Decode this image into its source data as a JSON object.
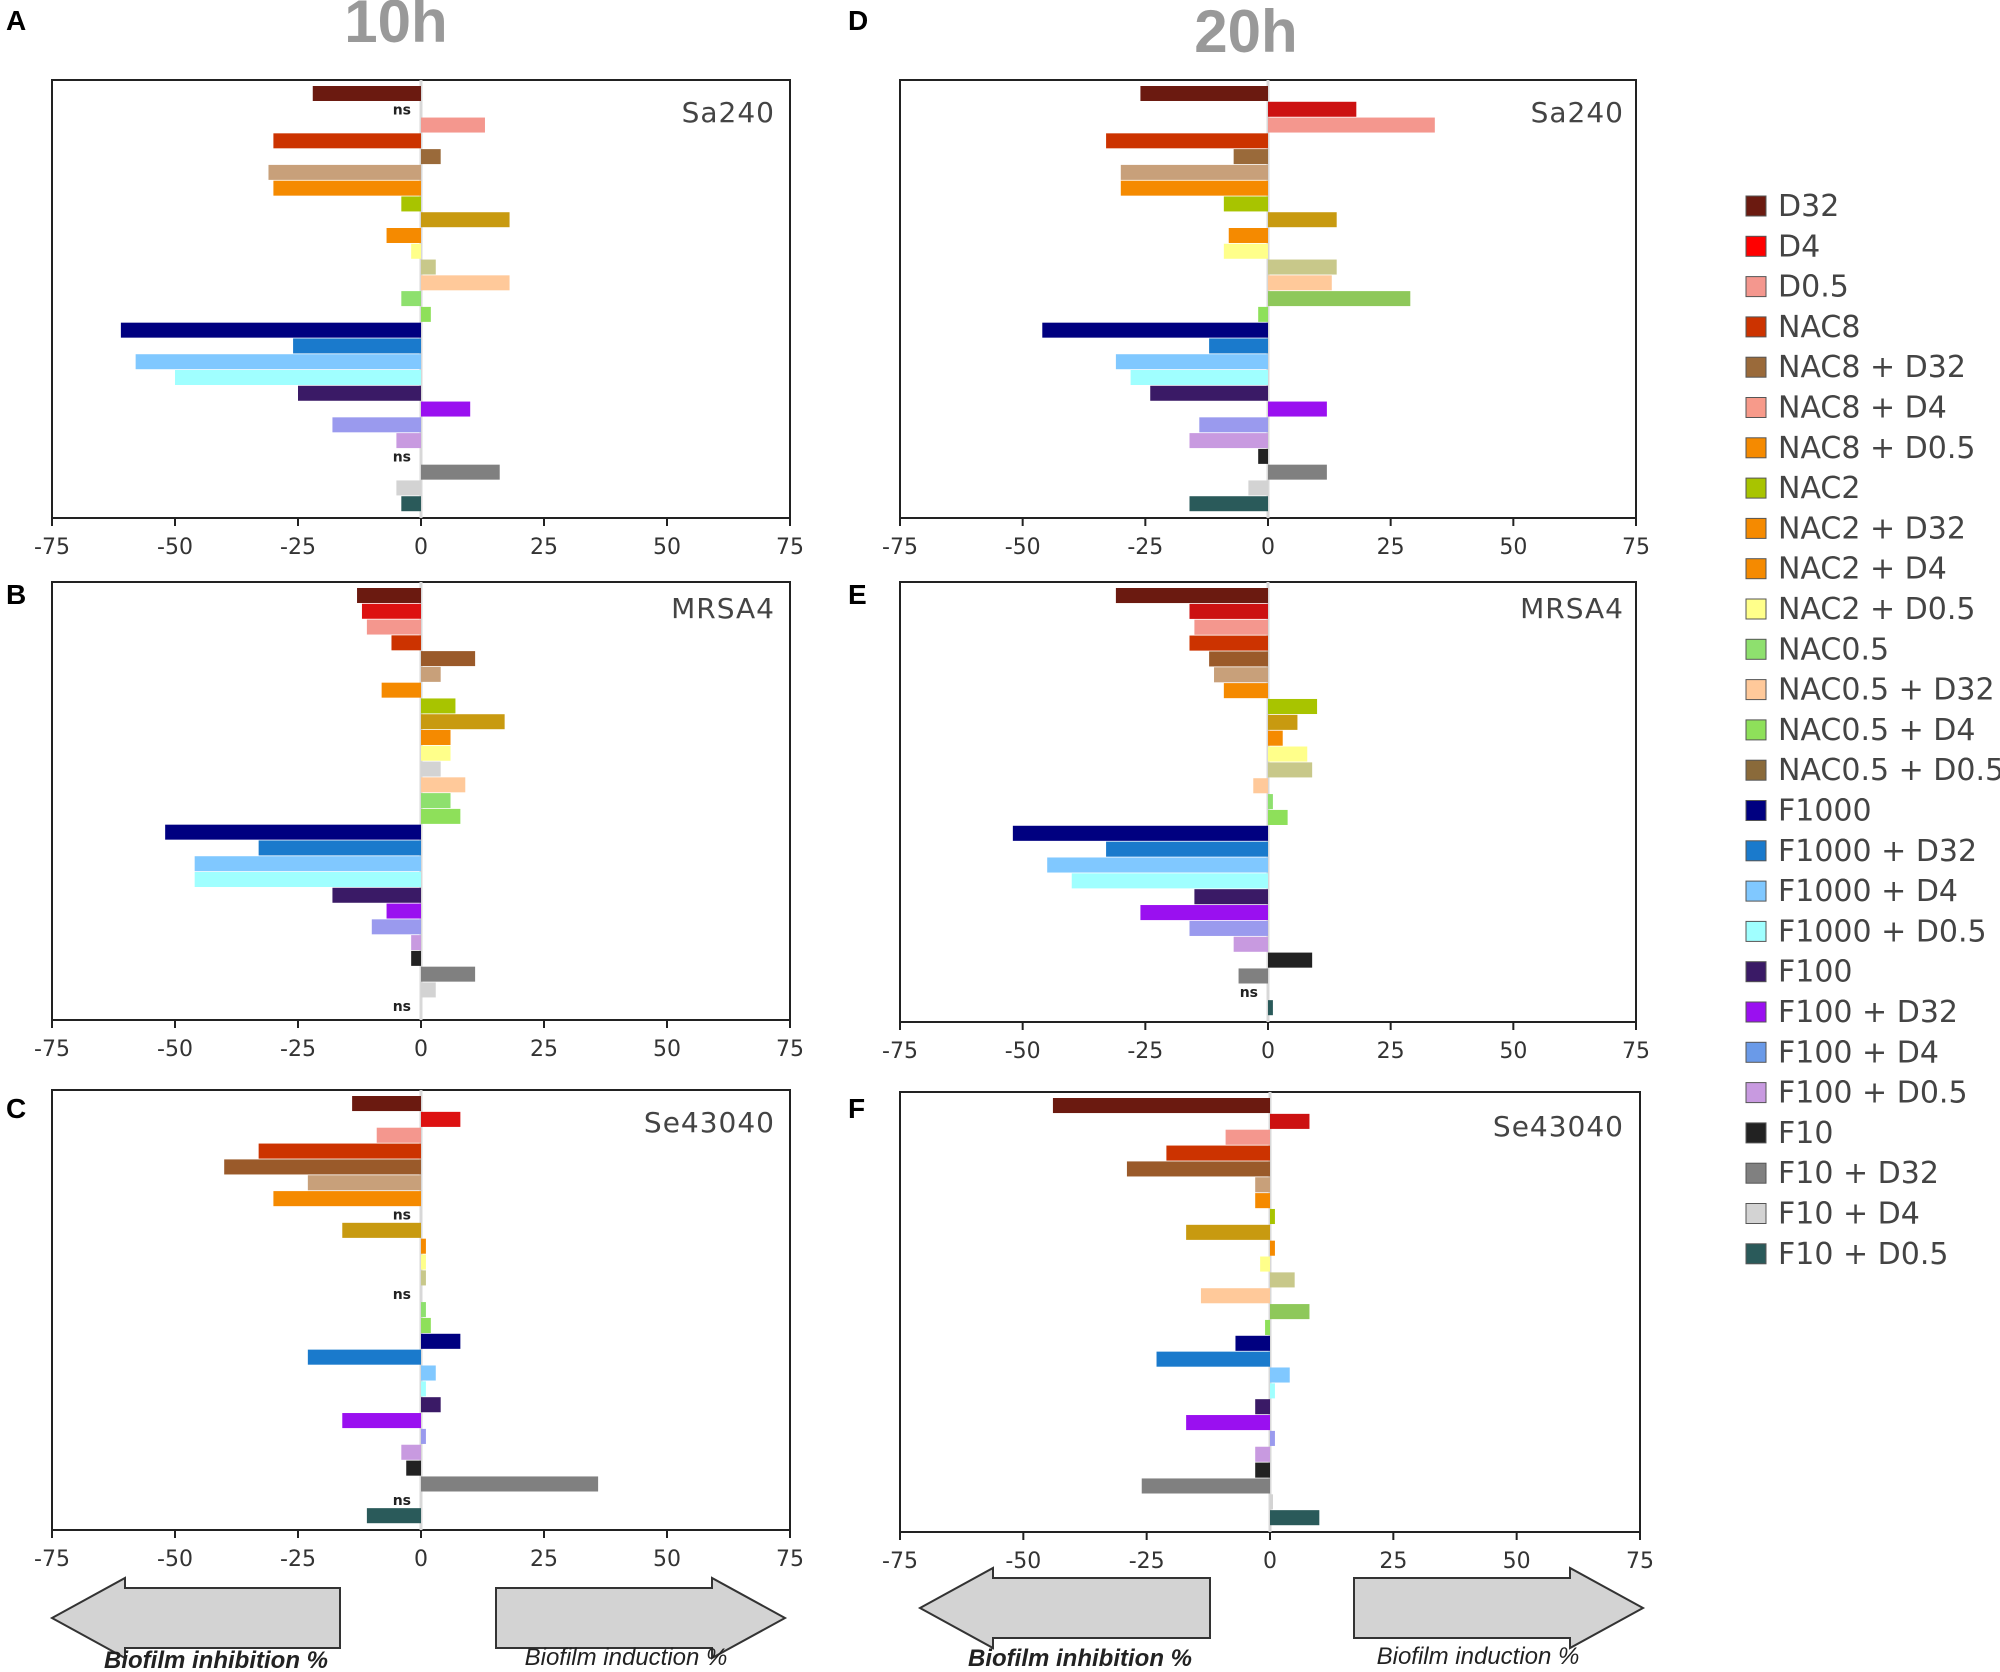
{
  "time_labels": {
    "left": "10h",
    "right": "20h"
  },
  "ns_label": "ns",
  "arrows": {
    "inhibition": "Biofilm inhibition %",
    "induction": "Biofilm induction %"
  },
  "series_names": [
    "D32",
    "D4",
    "D0.5",
    "NAC8",
    "NAC8 + D32",
    "NAC8 + D4",
    "NAC8 + D0.5",
    "NAC2",
    "NAC2 + D32",
    "NAC2 + D4",
    "NAC2 + D0.5",
    "NAC0.5",
    "NAC0.5 + D32",
    "NAC0.5 + D4",
    "NAC0.5 + D0.5",
    "F1000",
    "F1000 + D32",
    "F1000 + D4",
    "F1000 + D0.5",
    "F100",
    "F100 + D32",
    "F100 + D4",
    "F100 + D0.5",
    "F10",
    "F10 + D32",
    "F10 + D4",
    "F10 + D0.5"
  ],
  "legend_colors": [
    "#6b1a10",
    "#ff0000",
    "#f4978e",
    "#cc3300",
    "#9a6a3a",
    "#f79a8a",
    "#f58a00",
    "#a8c400",
    "#f58a00",
    "#f58a00",
    "#ffff8a",
    "#8ee06e",
    "#ffc99a",
    "#8ee05a",
    "#8a6a3a",
    "#000080",
    "#1a7acc",
    "#80c8ff",
    "#a0ffff",
    "#3a1a66",
    "#9a10f0",
    "#6a9ae8",
    "#c89ae0",
    "#222222",
    "#808080",
    "#d3d3d3",
    "#2a5a5a"
  ],
  "chart_data": [
    {
      "panel": "A",
      "type": "bar",
      "orientation": "horizontal",
      "strain": "Sa240",
      "time": "10h",
      "xlim": [
        -75,
        75
      ],
      "xticks": [
        -75,
        -50,
        -25,
        0,
        25,
        50,
        75
      ],
      "rows": [
        {
          "value": -22,
          "color": "#6b1a10"
        },
        {
          "value": 0,
          "ns": true
        },
        {
          "value": 13,
          "color": "#f4978e"
        },
        {
          "value": -30,
          "color": "#cc3300"
        },
        {
          "value": 4,
          "color": "#9a6a3a"
        },
        {
          "value": -31,
          "color": "#c8a07a"
        },
        {
          "value": -30,
          "color": "#f58a00"
        },
        {
          "value": -4,
          "color": "#a8c400"
        },
        {
          "value": 18,
          "color": "#c89a10"
        },
        {
          "value": -7,
          "color": "#f58a00"
        },
        {
          "value": -2,
          "color": "#ffff8a"
        },
        {
          "value": 3,
          "color": "#c8c88a"
        },
        {
          "value": 18,
          "color": "#ffc99a"
        },
        {
          "value": -4,
          "color": "#8ee06e"
        },
        {
          "value": 2,
          "color": "#8ee05a"
        },
        {
          "value": -61,
          "color": "#000080"
        },
        {
          "value": -26,
          "color": "#1a7acc"
        },
        {
          "value": -58,
          "color": "#80c8ff"
        },
        {
          "value": -50,
          "color": "#a0ffff"
        },
        {
          "value": -25,
          "color": "#3a1a66"
        },
        {
          "value": 10,
          "color": "#9a10f0"
        },
        {
          "value": -18,
          "color": "#9a9aee"
        },
        {
          "value": -5,
          "color": "#c89ae0"
        },
        {
          "value": 0,
          "ns": true
        },
        {
          "value": 16,
          "color": "#808080"
        },
        {
          "value": -5,
          "color": "#d3d3d3"
        },
        {
          "value": -4,
          "color": "#2a5a5a"
        }
      ]
    },
    {
      "panel": "B",
      "type": "bar",
      "orientation": "horizontal",
      "strain": "MRSA4",
      "time": "10h",
      "xlim": [
        -75,
        75
      ],
      "xticks": [
        -75,
        -50,
        -25,
        0,
        25,
        50,
        75
      ],
      "rows": [
        {
          "value": -13,
          "color": "#6b1a10"
        },
        {
          "value": -12,
          "color": "#dd1111"
        },
        {
          "value": -11,
          "color": "#f4978e"
        },
        {
          "value": -6,
          "color": "#cc3300"
        },
        {
          "value": 11,
          "color": "#9a5a2a"
        },
        {
          "value": 4,
          "color": "#c8a07a"
        },
        {
          "value": -8,
          "color": "#f58a00"
        },
        {
          "value": 7,
          "color": "#a8c400"
        },
        {
          "value": 17,
          "color": "#c89a10"
        },
        {
          "value": 6,
          "color": "#f58a00"
        },
        {
          "value": 6,
          "color": "#ffff8a"
        },
        {
          "value": 4,
          "color": "#d3d3d3"
        },
        {
          "value": 9,
          "color": "#ffc99a"
        },
        {
          "value": 6,
          "color": "#8ee06e"
        },
        {
          "value": 8,
          "color": "#8ee05a"
        },
        {
          "value": -52,
          "color": "#000080"
        },
        {
          "value": -33,
          "color": "#1a7acc"
        },
        {
          "value": -46,
          "color": "#80c8ff"
        },
        {
          "value": -46,
          "color": "#a0ffff"
        },
        {
          "value": -18,
          "color": "#3a1a66"
        },
        {
          "value": -7,
          "color": "#9a10f0"
        },
        {
          "value": -10,
          "color": "#9a9aee"
        },
        {
          "value": -2,
          "color": "#c89ae0"
        },
        {
          "value": -2,
          "color": "#222222"
        },
        {
          "value": 11,
          "color": "#808080"
        },
        {
          "value": 3,
          "color": "#d3d3d3"
        },
        {
          "value": 0,
          "ns": true
        }
      ]
    },
    {
      "panel": "C",
      "type": "bar",
      "orientation": "horizontal",
      "strain": "Se43040",
      "time": "10h",
      "xlim": [
        -75,
        75
      ],
      "xticks": [
        -75,
        -50,
        -25,
        0,
        25,
        50,
        75
      ],
      "rows": [
        {
          "value": -14,
          "color": "#6b1a10"
        },
        {
          "value": 8,
          "color": "#dd1111"
        },
        {
          "value": -9,
          "color": "#f4978e"
        },
        {
          "value": -33,
          "color": "#cc3300"
        },
        {
          "value": -40,
          "color": "#9a5a2a"
        },
        {
          "value": -23,
          "color": "#c8a07a"
        },
        {
          "value": -30,
          "color": "#f58a00"
        },
        {
          "value": 0,
          "ns": true
        },
        {
          "value": -16,
          "color": "#c89a10"
        },
        {
          "value": 1,
          "color": "#f58a00"
        },
        {
          "value": 1,
          "color": "#ffff8a"
        },
        {
          "value": 1,
          "color": "#c8c88a"
        },
        {
          "value": 0,
          "ns": true
        },
        {
          "value": 1,
          "color": "#8ee06e"
        },
        {
          "value": 2,
          "color": "#8ee05a"
        },
        {
          "value": 8,
          "color": "#000080"
        },
        {
          "value": -23,
          "color": "#1a7acc"
        },
        {
          "value": 3,
          "color": "#80c8ff"
        },
        {
          "value": 1,
          "color": "#a0ffff"
        },
        {
          "value": 4,
          "color": "#3a1a66"
        },
        {
          "value": -16,
          "color": "#9a10f0"
        },
        {
          "value": 1,
          "color": "#9a9aee"
        },
        {
          "value": -4,
          "color": "#c89ae0"
        },
        {
          "value": -3,
          "color": "#222222"
        },
        {
          "value": 36,
          "color": "#808080"
        },
        {
          "value": 0,
          "ns": true
        },
        {
          "value": -11,
          "color": "#2a5a5a"
        }
      ]
    },
    {
      "panel": "D",
      "type": "bar",
      "orientation": "horizontal",
      "strain": "Sa240",
      "time": "20h",
      "xlim": [
        -75,
        75
      ],
      "xticks": [
        -75,
        -50,
        -25,
        0,
        25,
        50,
        75
      ],
      "rows": [
        {
          "value": -26,
          "color": "#6b1a10"
        },
        {
          "value": 18,
          "color": "#cc1111"
        },
        {
          "value": 34,
          "color": "#f4978e"
        },
        {
          "value": -33,
          "color": "#cc3300"
        },
        {
          "value": -7,
          "color": "#9a6a3a"
        },
        {
          "value": -30,
          "color": "#c8a07a"
        },
        {
          "value": -30,
          "color": "#f58a00"
        },
        {
          "value": -9,
          "color": "#a8c400"
        },
        {
          "value": 14,
          "color": "#c89a10"
        },
        {
          "value": -8,
          "color": "#f58a00"
        },
        {
          "value": -9,
          "color": "#ffff8a"
        },
        {
          "value": 14,
          "color": "#c8c88a"
        },
        {
          "value": 13,
          "color": "#ffc99a"
        },
        {
          "value": 29,
          "color": "#8ec85a"
        },
        {
          "value": -2,
          "color": "#8ee05a"
        },
        {
          "value": -46,
          "color": "#000080"
        },
        {
          "value": -12,
          "color": "#1a7acc"
        },
        {
          "value": -31,
          "color": "#80c8ff"
        },
        {
          "value": -28,
          "color": "#a0ffff"
        },
        {
          "value": -24,
          "color": "#3a1a66"
        },
        {
          "value": 12,
          "color": "#9a10f0"
        },
        {
          "value": -14,
          "color": "#9a9aee"
        },
        {
          "value": -16,
          "color": "#c89ae0"
        },
        {
          "value": -2,
          "color": "#222222"
        },
        {
          "value": 12,
          "color": "#808080"
        },
        {
          "value": -4,
          "color": "#d3d3d3"
        },
        {
          "value": -16,
          "color": "#2a5a5a"
        }
      ]
    },
    {
      "panel": "E",
      "type": "bar",
      "orientation": "horizontal",
      "strain": "MRSA4",
      "time": "20h",
      "xlim": [
        -75,
        75
      ],
      "xticks": [
        -75,
        -50,
        -25,
        0,
        25,
        50,
        75
      ],
      "rows": [
        {
          "value": -31,
          "color": "#6b1a10"
        },
        {
          "value": -16,
          "color": "#cc1111"
        },
        {
          "value": -15,
          "color": "#f4978e"
        },
        {
          "value": -16,
          "color": "#cc3300"
        },
        {
          "value": -12,
          "color": "#9a5a2a"
        },
        {
          "value": -11,
          "color": "#c8a07a"
        },
        {
          "value": -9,
          "color": "#f58a00"
        },
        {
          "value": 10,
          "color": "#a8c400"
        },
        {
          "value": 6,
          "color": "#c89a10"
        },
        {
          "value": 3,
          "color": "#f58a00"
        },
        {
          "value": 8,
          "color": "#ffff8a"
        },
        {
          "value": 9,
          "color": "#c8c88a"
        },
        {
          "value": -3,
          "color": "#ffc99a"
        },
        {
          "value": 1,
          "color": "#8ee06e"
        },
        {
          "value": 4,
          "color": "#8ee05a"
        },
        {
          "value": -52,
          "color": "#000080"
        },
        {
          "value": -33,
          "color": "#1a7acc"
        },
        {
          "value": -45,
          "color": "#80c8ff"
        },
        {
          "value": -40,
          "color": "#a0ffff"
        },
        {
          "value": -15,
          "color": "#3a1a66"
        },
        {
          "value": -26,
          "color": "#9a10f0"
        },
        {
          "value": -16,
          "color": "#9a9aee"
        },
        {
          "value": -7,
          "color": "#c89ae0"
        },
        {
          "value": 9,
          "color": "#222222"
        },
        {
          "value": -6,
          "color": "#808080"
        },
        {
          "value": 0,
          "ns": true
        },
        {
          "value": 1,
          "color": "#2a5a5a"
        }
      ]
    },
    {
      "panel": "F",
      "type": "bar",
      "orientation": "horizontal",
      "strain": "Se43040",
      "time": "20h",
      "xlim": [
        -75,
        75
      ],
      "xticks": [
        -75,
        -50,
        -25,
        0,
        25,
        50,
        75
      ],
      "rows": [
        {
          "value": -44,
          "color": "#6b1a10"
        },
        {
          "value": 8,
          "color": "#cc1111"
        },
        {
          "value": -9,
          "color": "#f4978e"
        },
        {
          "value": -21,
          "color": "#cc3300"
        },
        {
          "value": -29,
          "color": "#9a5a2a"
        },
        {
          "value": -3,
          "color": "#c8a07a"
        },
        {
          "value": -3,
          "color": "#f58a00"
        },
        {
          "value": 1,
          "color": "#a8c400"
        },
        {
          "value": -17,
          "color": "#c89a10"
        },
        {
          "value": 1,
          "color": "#f58a00"
        },
        {
          "value": -2,
          "color": "#ffff8a"
        },
        {
          "value": 5,
          "color": "#c8c88a"
        },
        {
          "value": -14,
          "color": "#ffc99a"
        },
        {
          "value": 8,
          "color": "#8ec85a"
        },
        {
          "value": -1,
          "color": "#8ee05a"
        },
        {
          "value": -7,
          "color": "#000080"
        },
        {
          "value": -23,
          "color": "#1a7acc"
        },
        {
          "value": 4,
          "color": "#80c8ff"
        },
        {
          "value": 1,
          "color": "#a0ffff"
        },
        {
          "value": -3,
          "color": "#3a1a66"
        },
        {
          "value": -17,
          "color": "#9a10f0"
        },
        {
          "value": 1,
          "color": "#9a9aee"
        },
        {
          "value": -3,
          "color": "#c89ae0"
        },
        {
          "value": -3,
          "color": "#222222"
        },
        {
          "value": -26,
          "color": "#808080"
        },
        {
          "value": 0,
          "color": "#d3d3d3"
        },
        {
          "value": 10,
          "color": "#2a5a5a"
        }
      ]
    }
  ]
}
